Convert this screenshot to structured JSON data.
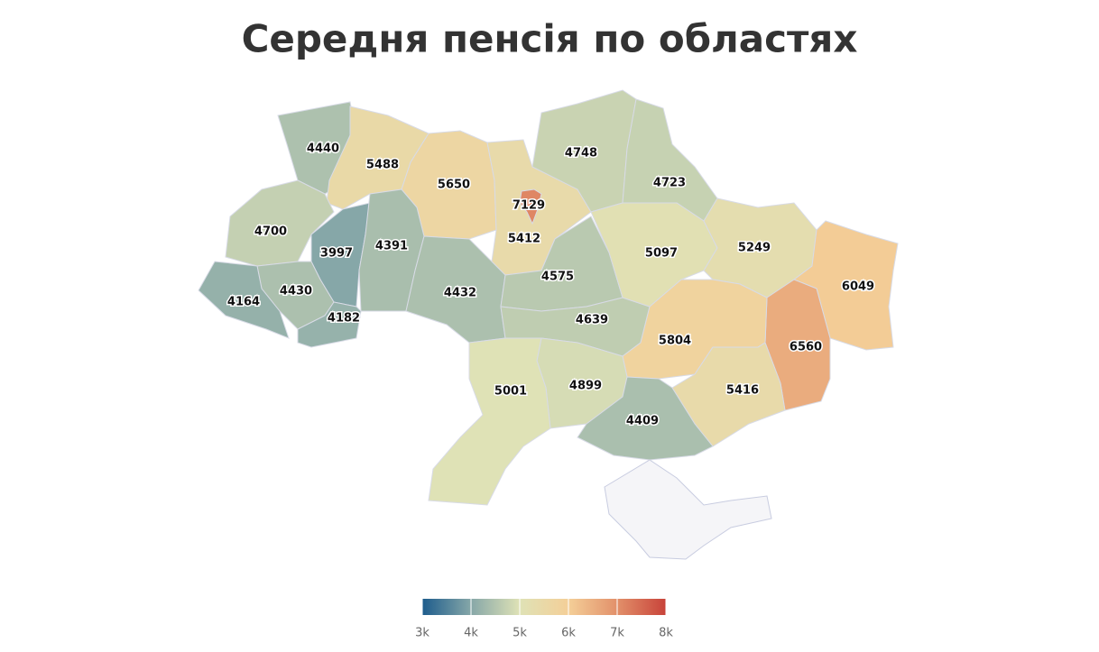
{
  "chart_data": {
    "type": "choropleth",
    "title": "Середня пенсія по областях",
    "values": [
      4440,
      5488,
      5650,
      5412,
      7129,
      4748,
      4723,
      4700,
      3997,
      4391,
      4430,
      4164,
      4182,
      4432,
      4575,
      4639,
      5097,
      5249,
      6049,
      6560,
      5804,
      5416,
      4899,
      5001,
      4409
    ],
    "ticks": [
      {
        "value": 3000,
        "label": "3k"
      },
      {
        "value": 4000,
        "label": "4k"
      },
      {
        "value": 5000,
        "label": "5k"
      },
      {
        "value": 6000,
        "label": "6k"
      },
      {
        "value": 7000,
        "label": "7k"
      },
      {
        "value": 8000,
        "label": "8k"
      }
    ],
    "colors": [
      "#1d5c8c",
      "#86a7a8",
      "#dfe2b6",
      "#f4cf98",
      "#e2906a",
      "#c8433a"
    ],
    "ylim": [
      3000,
      8000
    ]
  }
}
